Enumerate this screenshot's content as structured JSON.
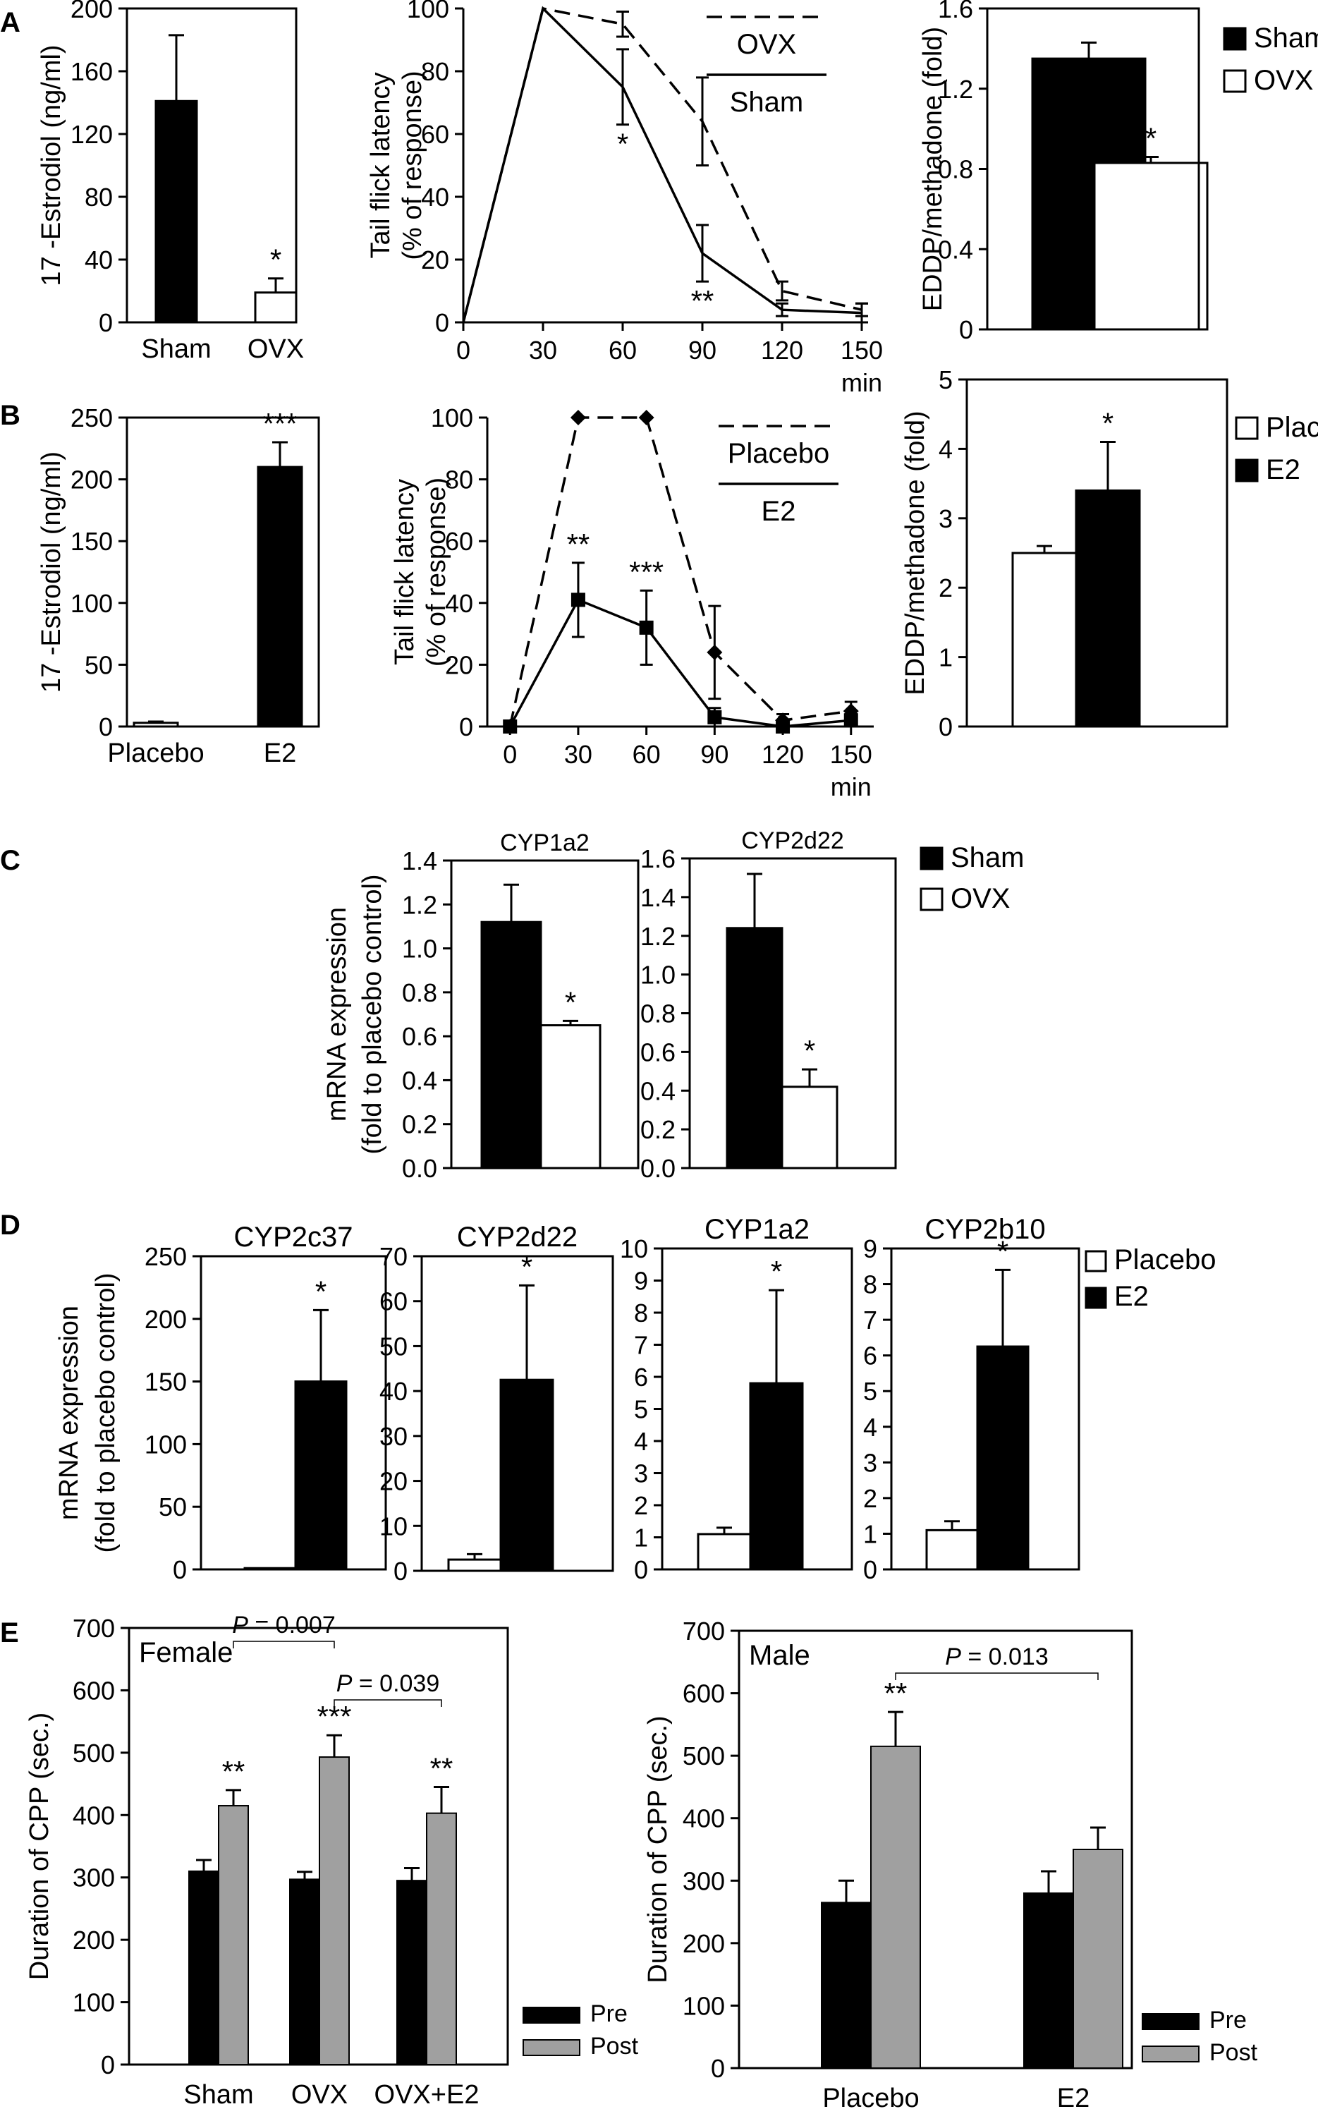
{
  "panels": [
    {
      "id": "A",
      "label": "A",
      "charts": [
        {
          "id": "A1",
          "type": "bar",
          "bar_colors": [
            "#000000",
            "#ffffff"
          ],
          "categories": [
            "Sham",
            "OVX"
          ],
          "values": [
            141,
            19
          ],
          "errors": [
            42,
            9
          ],
          "ylabel": "17 -Estrodiol (ng/ml)",
          "ylim": [
            0,
            200
          ],
          "yticks": [
            0,
            40,
            80,
            120,
            160,
            200
          ],
          "yticklabels": [
            "0",
            "40",
            "80",
            "120",
            "160",
            "200"
          ],
          "annotations": [
            {
              "category": "OVX",
              "text": "*"
            }
          ]
        },
        {
          "id": "A2",
          "type": "line",
          "x": [
            0,
            30,
            60,
            90,
            120,
            150
          ],
          "xticklabels": [
            "0",
            "30",
            "60",
            "90",
            "120",
            "150"
          ],
          "xunit": "min",
          "ylabel_lines": [
            "Tail flick latency",
            "(% of response)"
          ],
          "ylim": [
            0,
            100
          ],
          "yticks": [
            0,
            20,
            40,
            60,
            80,
            100
          ],
          "yticklabels": [
            "0",
            "20",
            "40",
            "60",
            "80",
            "100"
          ],
          "series": [
            {
              "name": "OVX",
              "dash": true,
              "marker": "none",
              "values": [
                0,
                100,
                95,
                64,
                10,
                4
              ],
              "errors": [
                0,
                0,
                4,
                14,
                3,
                2
              ]
            },
            {
              "name": "Sham",
              "dash": false,
              "marker": "none",
              "values": [
                0,
                100,
                75,
                22,
                4,
                3
              ],
              "errors": [
                0,
                0,
                12,
                9,
                2,
                3
              ]
            }
          ],
          "legend_position": "top-right",
          "annotations": [
            {
              "x": 60,
              "text": "*"
            },
            {
              "x": 90,
              "text": "**"
            }
          ]
        },
        {
          "id": "A3",
          "type": "bar",
          "bar_colors": [
            "#000000",
            "#ffffff"
          ],
          "categories": [
            "Sham",
            "OVX"
          ],
          "values": [
            1.35,
            0.83
          ],
          "errors": [
            0.08,
            0.03
          ],
          "ylabel": "EDDP/methadone (fold)",
          "ylim": [
            0,
            1.6
          ],
          "yticks": [
            0,
            0.4,
            0.8,
            1.2,
            1.6
          ],
          "yticklabels": [
            "0",
            "0.4",
            "0.8",
            "1.2",
            "1.6"
          ],
          "annotations": [
            {
              "category": "OVX",
              "text": "*"
            }
          ]
        }
      ],
      "legend": [
        {
          "label": "Sham",
          "color": "#000000"
        },
        {
          "label": "OVX",
          "color": "#ffffff"
        }
      ]
    },
    {
      "id": "B",
      "label": "B",
      "charts": [
        {
          "id": "B1",
          "type": "bar",
          "bar_colors": [
            "#ffffff",
            "#000000"
          ],
          "categories": [
            "Placebo",
            "E2"
          ],
          "values": [
            3,
            210
          ],
          "errors": [
            1,
            20
          ],
          "ylabel": "17 -Estrodiol (ng/ml)",
          "ylim": [
            0,
            250
          ],
          "yticks": [
            0,
            50,
            100,
            150,
            200,
            250
          ],
          "yticklabels": [
            "0",
            "50",
            "100",
            "150",
            "200",
            "250"
          ],
          "annotations": [
            {
              "category": "E2",
              "text": "***"
            }
          ]
        },
        {
          "id": "B2",
          "type": "line",
          "x": [
            0,
            30,
            60,
            90,
            120,
            150
          ],
          "xticklabels": [
            "0",
            "30",
            "60",
            "90",
            "120",
            "150"
          ],
          "xunit": "min",
          "ylabel_lines": [
            "Tail flick latency",
            "(% of response)"
          ],
          "ylim": [
            0,
            100
          ],
          "yticks": [
            0,
            20,
            40,
            60,
            80,
            100
          ],
          "yticklabels": [
            "0",
            "20",
            "40",
            "60",
            "80",
            "100"
          ],
          "series": [
            {
              "name": "Placebo",
              "dash": true,
              "marker": "diamond",
              "values": [
                0,
                100,
                100,
                24,
                2,
                5
              ],
              "errors": [
                0,
                0,
                0,
                15,
                2,
                3
              ]
            },
            {
              "name": "E2",
              "dash": false,
              "marker": "square",
              "values": [
                0,
                41,
                32,
                3,
                0,
                2
              ],
              "errors": [
                0,
                12,
                12,
                3,
                1,
                2
              ]
            }
          ],
          "legend_position": "top-right",
          "annotations": [
            {
              "x": 30,
              "text": "**"
            },
            {
              "x": 60,
              "text": "***"
            }
          ]
        },
        {
          "id": "B3",
          "type": "bar",
          "bar_colors": [
            "#ffffff",
            "#000000"
          ],
          "categories": [
            "Placebo",
            "E2"
          ],
          "values": [
            2.5,
            3.4
          ],
          "errors": [
            0.1,
            0.7
          ],
          "ylabel": "EDDP/methadone (fold)",
          "ylim": [
            0,
            5
          ],
          "yticks": [
            0,
            1,
            2,
            3,
            4,
            5
          ],
          "yticklabels": [
            "0",
            "1",
            "2",
            "3",
            "4",
            "5"
          ],
          "annotations": [
            {
              "category": "E2",
              "text": "*"
            }
          ]
        }
      ],
      "legend": [
        {
          "label": "Placebo",
          "color": "#ffffff"
        },
        {
          "label": "E2",
          "color": "#000000"
        }
      ]
    },
    {
      "id": "C",
      "label": "C",
      "shared_ylabel_lines": [
        "mRNA expression",
        "(fold to placebo control)"
      ],
      "charts": [
        {
          "id": "C1",
          "type": "bar",
          "title": "CYP1a2",
          "bar_colors": [
            "#000000",
            "#ffffff"
          ],
          "categories": [
            "Sham",
            "OVX"
          ],
          "values": [
            1.12,
            0.65
          ],
          "errors": [
            0.17,
            0.02
          ],
          "ylim": [
            0,
            1.4
          ],
          "yticks": [
            0,
            0.2,
            0.4,
            0.6,
            0.8,
            1.0,
            1.2,
            1.4
          ],
          "yticklabels": [
            "0.0",
            "0.2",
            "0.4",
            "0.6",
            "0.8",
            "1.0",
            "1.2",
            "1.4"
          ],
          "annotations": [
            {
              "category": "OVX",
              "text": "*"
            }
          ]
        },
        {
          "id": "C2",
          "type": "bar",
          "title": "CYP2d22",
          "bar_colors": [
            "#000000",
            "#ffffff"
          ],
          "categories": [
            "Sham",
            "OVX"
          ],
          "values": [
            1.24,
            0.42
          ],
          "errors": [
            0.28,
            0.09
          ],
          "ylim": [
            0,
            1.6
          ],
          "yticks": [
            0,
            0.2,
            0.4,
            0.6,
            0.8,
            1.0,
            1.2,
            1.4,
            1.6
          ],
          "yticklabels": [
            "0.0",
            "0.2",
            "0.4",
            "0.6",
            "0.8",
            "1.0",
            "1.2",
            "1.4",
            "1.6"
          ],
          "annotations": [
            {
              "category": "OVX",
              "text": "*"
            }
          ]
        }
      ],
      "legend": [
        {
          "label": "Sham",
          "color": "#000000"
        },
        {
          "label": "OVX",
          "color": "#ffffff"
        }
      ]
    },
    {
      "id": "D",
      "label": "D",
      "shared_ylabel_lines": [
        "mRNA expression",
        "(fold to placebo control)"
      ],
      "charts": [
        {
          "id": "D1",
          "type": "bar",
          "title": "CYP2c37",
          "bar_colors": [
            "#ffffff",
            "#000000"
          ],
          "categories": [
            "Placebo",
            "E2"
          ],
          "values": [
            1,
            150
          ],
          "errors": [
            0,
            57
          ],
          "ylim": [
            0,
            250
          ],
          "yticks": [
            0,
            50,
            100,
            150,
            200,
            250
          ],
          "yticklabels": [
            "0",
            "50",
            "100",
            "150",
            "200",
            "250"
          ],
          "annotations": [
            {
              "category": "E2",
              "text": "*"
            }
          ]
        },
        {
          "id": "D2",
          "type": "bar",
          "title": "CYP2d22",
          "bar_colors": [
            "#ffffff",
            "#000000"
          ],
          "categories": [
            "Placebo",
            "E2"
          ],
          "values": [
            2.5,
            42.5
          ],
          "errors": [
            1.2,
            21
          ],
          "ylim": [
            0,
            70
          ],
          "yticks": [
            0,
            10,
            20,
            30,
            40,
            50,
            60,
            70
          ],
          "yticklabels": [
            "0",
            "10",
            "20",
            "30",
            "40",
            "50",
            "60",
            "70"
          ],
          "annotations": [
            {
              "category": "E2",
              "text": "*"
            }
          ]
        },
        {
          "id": "D3",
          "type": "bar",
          "title": "CYP1a2",
          "bar_colors": [
            "#ffffff",
            "#000000"
          ],
          "categories": [
            "Placebo",
            "E2"
          ],
          "values": [
            1.1,
            5.8
          ],
          "errors": [
            0.2,
            2.9
          ],
          "ylim": [
            0,
            10
          ],
          "yticks": [
            0,
            1,
            2,
            3,
            4,
            5,
            6,
            7,
            8,
            9,
            10
          ],
          "yticklabels": [
            "0",
            "1",
            "2",
            "3",
            "4",
            "5",
            "6",
            "7",
            "8",
            "9",
            "10"
          ],
          "annotations": [
            {
              "category": "E2",
              "text": "*"
            }
          ]
        },
        {
          "id": "D4",
          "type": "bar",
          "title": "CYP2b10",
          "bar_colors": [
            "#ffffff",
            "#000000"
          ],
          "categories": [
            "Placebo",
            "E2"
          ],
          "values": [
            1.1,
            6.25
          ],
          "errors": [
            0.25,
            2.15
          ],
          "ylim": [
            0,
            9
          ],
          "yticks": [
            0,
            1,
            2,
            3,
            4,
            5,
            6,
            7,
            8,
            9
          ],
          "yticklabels": [
            "0",
            "1",
            "2",
            "3",
            "4",
            "5",
            "6",
            "7",
            "8",
            "9"
          ],
          "annotations": [
            {
              "category": "E2",
              "text": "*"
            }
          ]
        }
      ],
      "legend": [
        {
          "label": "Placebo",
          "color": "#ffffff"
        },
        {
          "label": "E2",
          "color": "#000000"
        }
      ]
    },
    {
      "id": "E",
      "label": "E",
      "charts": [
        {
          "id": "E1",
          "type": "grouped-bar",
          "inner_label": "Female",
          "categories": [
            "Sham",
            "OVX",
            "OVX+E2"
          ],
          "series": [
            {
              "name": "Pre",
              "color": "#000000",
              "values": [
                310,
                297,
                295
              ],
              "errors": [
                18,
                12,
                20
              ]
            },
            {
              "name": "Post",
              "color": "#a0a0a0",
              "values": [
                415,
                493,
                403
              ],
              "errors": [
                25,
                35,
                42
              ]
            }
          ],
          "ylabel": "Duration of CPP (sec.)",
          "ylim": [
            0,
            700
          ],
          "yticks": [
            0,
            100,
            200,
            300,
            400,
            500,
            600,
            700
          ],
          "yticklabels": [
            "0",
            "100",
            "200",
            "300",
            "400",
            "500",
            "600",
            "700"
          ],
          "annotations": [
            {
              "category": "Sham",
              "text": "**"
            },
            {
              "category": "OVX",
              "text": "***"
            },
            {
              "category": "OVX+E2",
              "text": "**"
            }
          ],
          "comparisons": [
            {
              "from": "Sham",
              "to": "OVX",
              "label_p": "P",
              "label_rest": " = 0.007"
            },
            {
              "from": "OVX",
              "to": "OVX+E2",
              "label_p": "P",
              "label_rest": " = 0.039"
            }
          ]
        },
        {
          "id": "E2",
          "type": "grouped-bar",
          "inner_label": "Male",
          "categories": [
            "Placebo",
            "E2"
          ],
          "series": [
            {
              "name": "Pre",
              "color": "#000000",
              "values": [
                265,
                280
              ],
              "errors": [
                35,
                35
              ]
            },
            {
              "name": "Post",
              "color": "#a0a0a0",
              "values": [
                515,
                350
              ],
              "errors": [
                55,
                35
              ]
            }
          ],
          "ylabel": "Duration of CPP (sec.)",
          "ylim": [
            0,
            700
          ],
          "yticks": [
            0,
            100,
            200,
            300,
            400,
            500,
            600,
            700
          ],
          "yticklabels": [
            "0",
            "100",
            "200",
            "300",
            "400",
            "500",
            "600",
            "700"
          ],
          "annotations": [
            {
              "category": "Placebo",
              "text": "**"
            }
          ],
          "comparisons": [
            {
              "from": "Placebo",
              "to": "E2",
              "label_p": "P",
              "label_rest": " = 0.013"
            }
          ]
        }
      ]
    }
  ]
}
